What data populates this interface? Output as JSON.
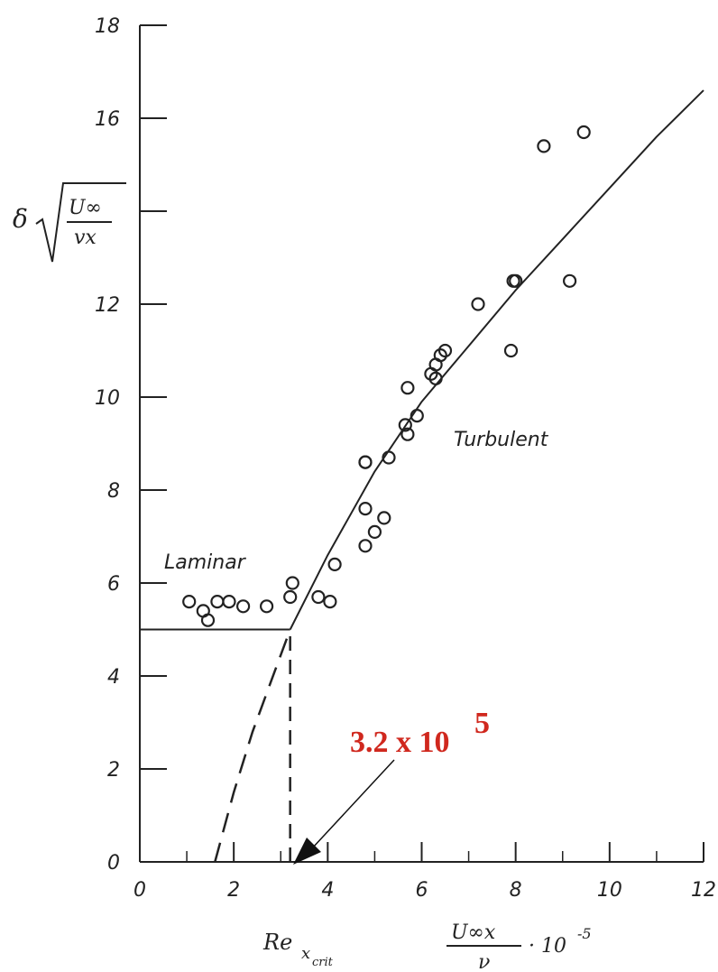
{
  "chart_data": {
    "type": "scatter",
    "xlim": [
      0,
      12
    ],
    "ylim": [
      0,
      18
    ],
    "x_ticks": [
      0,
      2,
      4,
      6,
      8,
      10,
      12
    ],
    "x_tick_labels": [
      "0",
      "2",
      "4",
      "6",
      "8",
      "10",
      "12"
    ],
    "y_ticks": [
      0,
      2,
      4,
      6,
      8,
      10,
      12,
      16,
      18
    ],
    "y_tick_labels": [
      "0",
      "2",
      "4",
      "6",
      "8",
      "10",
      "12",
      "16",
      "18"
    ],
    "minor_x_ticks": [
      1,
      3,
      5,
      7,
      9,
      11
    ],
    "minor_y_ticks": [
      14
    ],
    "y_axis_label": {
      "symbol": "δ",
      "numerator": "U∞",
      "denominator": "vx"
    },
    "x_axis_label": {
      "numerator": "U∞x",
      "denominator": "ν",
      "suffix": "· 10",
      "exponent": "-5"
    },
    "crit_label": {
      "base": "Re",
      "sub": "x",
      "subsub": "crit"
    },
    "regions": {
      "laminar": "Laminar",
      "turbulent": "Turbulent"
    },
    "callout": {
      "base": "3.2 x 10",
      "exponent": "5",
      "target_x": 3.2,
      "target_y": 0
    },
    "laminar_line": {
      "x": [
        0,
        3.2
      ],
      "y": [
        5,
        5
      ]
    },
    "crit_line": {
      "x": [
        3.2,
        3.2
      ],
      "y": [
        0,
        5
      ]
    },
    "turbulent_curve": {
      "x": [
        3.2,
        4,
        5,
        6,
        7,
        8,
        9,
        10,
        11,
        12
      ],
      "y": [
        5,
        6.6,
        8.4,
        9.9,
        11.1,
        12.3,
        13.4,
        14.5,
        15.6,
        16.6
      ]
    },
    "turbulent_extrapolation": {
      "x": [
        1.6,
        2.0,
        2.4,
        2.8,
        3.2
      ],
      "y": [
        0,
        1.5,
        2.8,
        3.9,
        5
      ]
    },
    "points": {
      "x": [
        1.05,
        1.35,
        1.45,
        1.65,
        1.9,
        2.2,
        2.7,
        3.2,
        3.25,
        3.8,
        4.05,
        4.15,
        4.8,
        4.8,
        4.8,
        5.0,
        5.2,
        5.3,
        4.8,
        5.65,
        5.7,
        5.9,
        5.7,
        6.2,
        6.3,
        6.3,
        6.4,
        6.5,
        7.2,
        7.9,
        7.95,
        8.0,
        8.6,
        9.15,
        9.45
      ],
      "y": [
        5.6,
        5.4,
        5.2,
        5.6,
        5.6,
        5.5,
        5.5,
        5.7,
        6.0,
        5.7,
        5.6,
        6.4,
        6.8,
        7.6,
        8.6,
        7.1,
        7.4,
        8.7,
        8.6,
        9.4,
        9.2,
        9.6,
        10.2,
        10.5,
        10.4,
        10.7,
        10.9,
        11.0,
        12.0,
        11.0,
        12.5,
        12.5,
        15.4,
        12.5,
        15.7
      ]
    }
  }
}
